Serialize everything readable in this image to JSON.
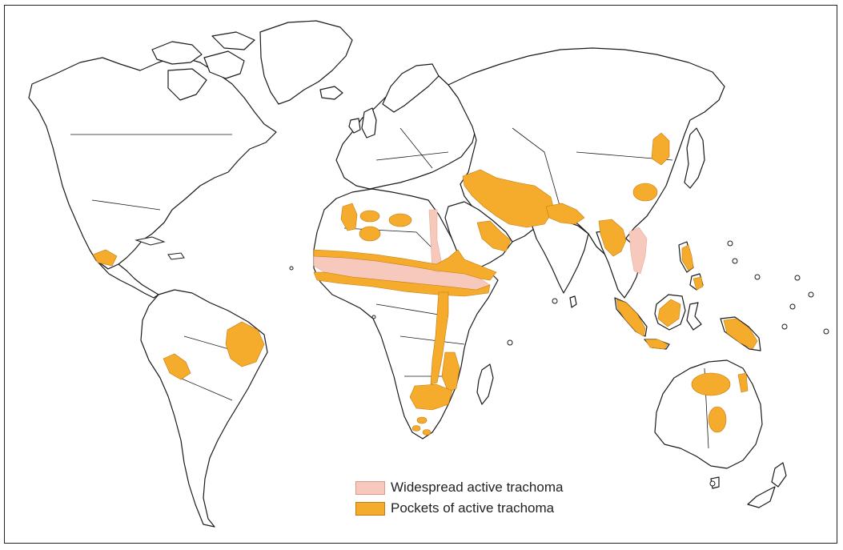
{
  "map": {
    "legend": {
      "items": [
        {
          "label": "Widespread active trachoma",
          "color": "#f7c9bd",
          "border": "#d89a8c"
        },
        {
          "label": "Pockets of active trachoma",
          "color": "#f5ab2c",
          "border": "#c57a10"
        }
      ]
    },
    "colors": {
      "widespread": "#f7c9bd",
      "pockets": "#f5ab2c",
      "land_outline": "#1a1a1a",
      "background": "#ffffff"
    }
  }
}
